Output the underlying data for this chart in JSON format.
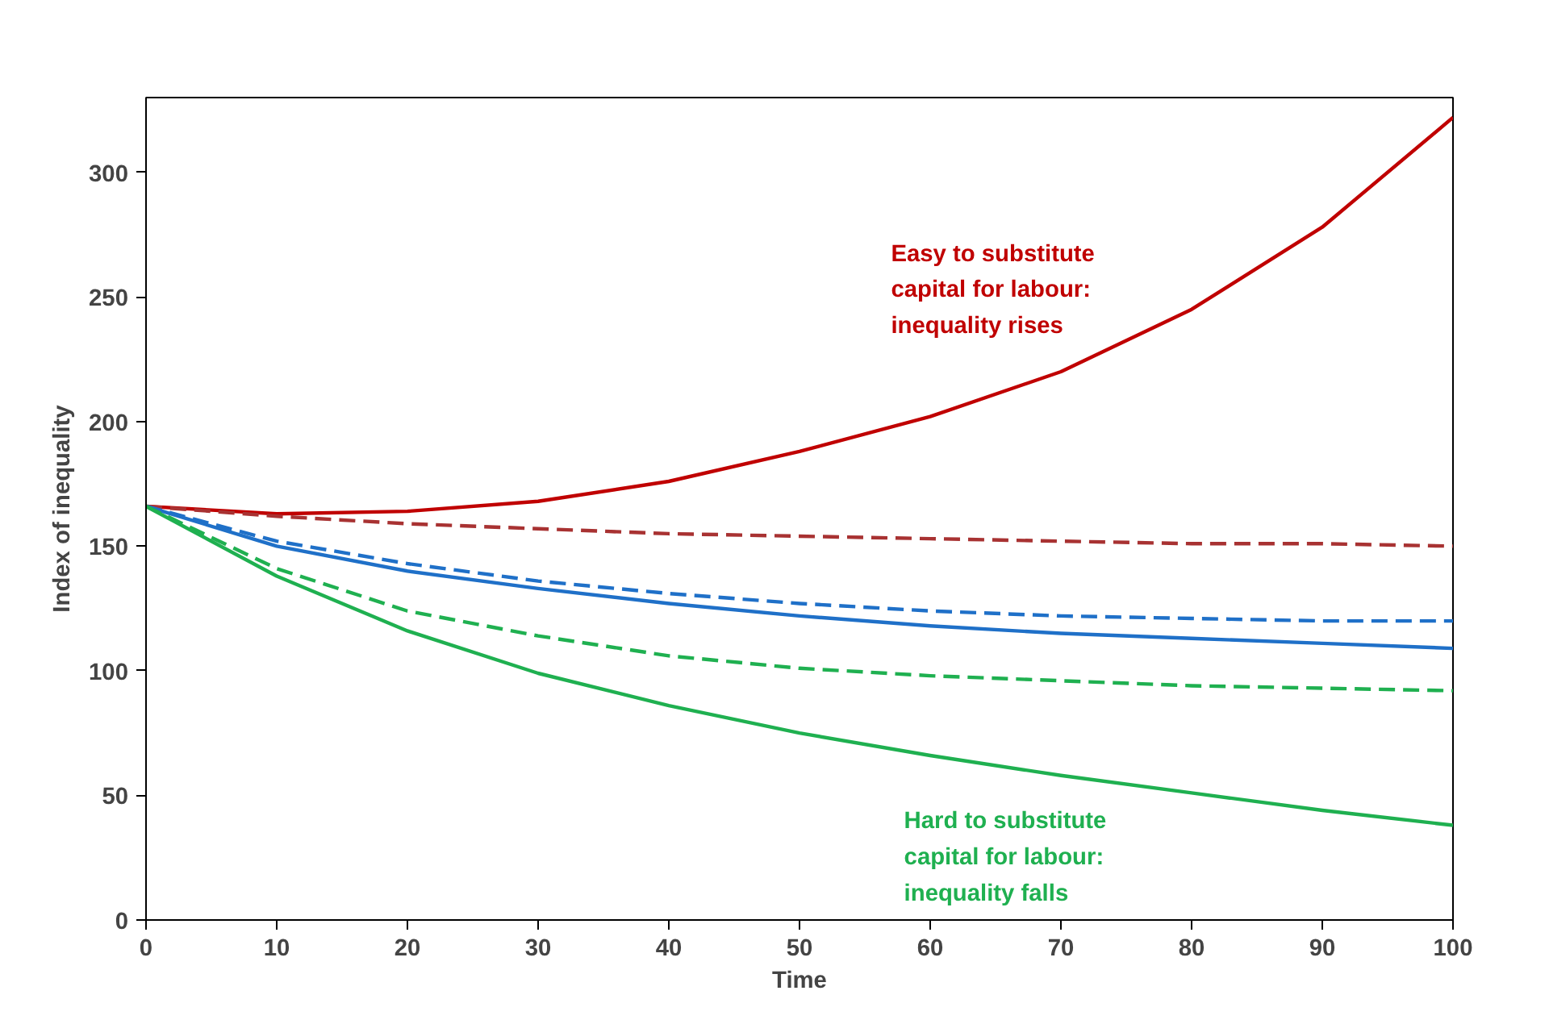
{
  "chart_data": {
    "type": "line",
    "xlabel": "Time",
    "ylabel": "Index of inequality",
    "x": [
      0,
      10,
      20,
      30,
      40,
      50,
      60,
      70,
      80,
      90,
      100
    ],
    "xlim": [
      0,
      100
    ],
    "xticks": [
      0,
      10,
      20,
      30,
      40,
      50,
      60,
      70,
      80,
      90,
      100
    ],
    "ylim": [
      0,
      330
    ],
    "yticks": [
      0,
      50,
      100,
      150,
      200,
      250,
      300
    ],
    "grid": false,
    "series": [
      {
        "color": "#c00000",
        "line_style": "solid",
        "values": [
          166,
          163,
          164,
          168,
          176,
          188,
          202,
          220,
          245,
          278,
          322
        ]
      },
      {
        "color": "#a83232",
        "line_style": "dashed",
        "values": [
          166,
          162,
          159,
          157,
          155,
          154,
          153,
          152,
          151,
          151,
          150
        ]
      },
      {
        "color": "#1f70c8",
        "line_style": "dashed",
        "values": [
          166,
          152,
          143,
          136,
          131,
          127,
          124,
          122,
          121,
          120,
          120
        ]
      },
      {
        "color": "#1f70c8",
        "line_style": "solid",
        "values": [
          166,
          150,
          140,
          133,
          127,
          122,
          118,
          115,
          113,
          111,
          109
        ]
      },
      {
        "color": "#1fb050",
        "line_style": "dashed",
        "values": [
          166,
          141,
          124,
          114,
          106,
          101,
          98,
          96,
          94,
          93,
          92
        ]
      },
      {
        "color": "#1fb050",
        "line_style": "solid",
        "values": [
          166,
          138,
          116,
          99,
          86,
          75,
          66,
          58,
          51,
          44,
          38
        ]
      }
    ],
    "annotations": [
      "Easy to substitute\ncapital for labour:\ninequality rises",
      "Hard to substitute\ncapital for labour:\ninequality falls"
    ]
  }
}
